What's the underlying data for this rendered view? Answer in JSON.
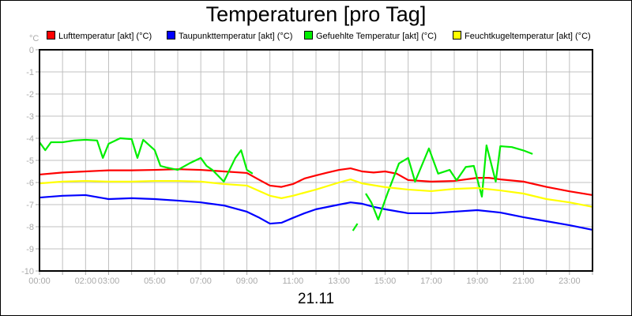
{
  "chart_data": {
    "type": "line",
    "title": "Temperaturen [pro Tag]",
    "xlabel": "21.11",
    "ylabel": "°C",
    "xlim": [
      0,
      24
    ],
    "ylim": [
      -10,
      0
    ],
    "grid": true,
    "legend_position": "top",
    "x_tick_labels": [
      {
        "h": 0,
        "label": "00:00"
      },
      {
        "h": 2,
        "label": "02:00"
      },
      {
        "h": 3,
        "label": "03:00"
      },
      {
        "h": 5,
        "label": "05:00"
      },
      {
        "h": 7,
        "label": "07:00"
      },
      {
        "h": 9,
        "label": "09:00"
      },
      {
        "h": 11,
        "label": "11:00"
      },
      {
        "h": 13,
        "label": "13:00"
      },
      {
        "h": 15,
        "label": "15:00"
      },
      {
        "h": 17,
        "label": "17:00"
      },
      {
        "h": 19,
        "label": "19:00"
      },
      {
        "h": 21,
        "label": "21:00"
      },
      {
        "h": 23,
        "label": "23:00"
      }
    ],
    "y_ticks": [
      0,
      -1,
      -2,
      -3,
      -4,
      -5,
      -6,
      -7,
      -8,
      -9,
      -10
    ],
    "series": [
      {
        "name": "Lufttemperatur [akt] (°C)",
        "color": "#ff0000",
        "segments": [
          [
            [
              0,
              -5.64
            ],
            [
              1,
              -5.55
            ],
            [
              2,
              -5.5
            ],
            [
              3,
              -5.45
            ],
            [
              4,
              -5.45
            ],
            [
              5,
              -5.43
            ],
            [
              6,
              -5.4
            ],
            [
              7,
              -5.43
            ],
            [
              8,
              -5.5
            ],
            [
              9,
              -5.57
            ],
            [
              9.5,
              -5.86
            ],
            [
              10,
              -6.14
            ],
            [
              10.5,
              -6.2
            ],
            [
              11,
              -6.07
            ],
            [
              11.5,
              -5.82
            ],
            [
              12,
              -5.68
            ],
            [
              12.5,
              -5.55
            ],
            [
              13,
              -5.43
            ],
            [
              13.5,
              -5.36
            ],
            [
              14,
              -5.5
            ],
            [
              14.5,
              -5.55
            ],
            [
              15,
              -5.5
            ],
            [
              15.5,
              -5.6
            ],
            [
              16,
              -5.89
            ],
            [
              17,
              -5.96
            ],
            [
              18,
              -5.93
            ],
            [
              19,
              -5.79
            ],
            [
              19.5,
              -5.79
            ],
            [
              20,
              -5.86
            ],
            [
              21,
              -5.96
            ],
            [
              22,
              -6.2
            ],
            [
              23,
              -6.4
            ],
            [
              24,
              -6.57
            ]
          ]
        ]
      },
      {
        "name": "Taupunkttemperatur [akt] (°C)",
        "color": "#0000ff",
        "segments": [
          [
            [
              0,
              -6.68
            ],
            [
              1,
              -6.6
            ],
            [
              2,
              -6.57
            ],
            [
              3,
              -6.75
            ],
            [
              4,
              -6.71
            ],
            [
              5,
              -6.75
            ],
            [
              6,
              -6.82
            ],
            [
              7,
              -6.9
            ],
            [
              8,
              -7.04
            ],
            [
              9,
              -7.32
            ],
            [
              9.5,
              -7.57
            ],
            [
              10,
              -7.86
            ],
            [
              10.5,
              -7.82
            ],
            [
              11,
              -7.6
            ],
            [
              11.5,
              -7.39
            ],
            [
              12,
              -7.21
            ],
            [
              13,
              -7.0
            ],
            [
              13.5,
              -6.9
            ],
            [
              14,
              -6.96
            ],
            [
              14.5,
              -7.1
            ],
            [
              15,
              -7.21
            ],
            [
              16,
              -7.39
            ],
            [
              17,
              -7.39
            ],
            [
              18,
              -7.32
            ],
            [
              19,
              -7.25
            ],
            [
              20,
              -7.36
            ],
            [
              21,
              -7.57
            ],
            [
              22,
              -7.75
            ],
            [
              23,
              -7.93
            ],
            [
              24,
              -8.14
            ]
          ]
        ]
      },
      {
        "name": "Gefuehlte Temperatur [akt] (°C)",
        "color": "#00ee00",
        "segments": [
          [
            [
              0,
              -4.18
            ],
            [
              0.25,
              -4.54
            ],
            [
              0.5,
              -4.18
            ],
            [
              1,
              -4.18
            ],
            [
              1.5,
              -4.1
            ],
            [
              2,
              -4.07
            ],
            [
              2.5,
              -4.1
            ],
            [
              2.75,
              -4.89
            ],
            [
              3,
              -4.25
            ],
            [
              3.5,
              -4.0
            ],
            [
              4,
              -4.04
            ],
            [
              4.25,
              -4.89
            ],
            [
              4.5,
              -4.07
            ],
            [
              5,
              -4.54
            ],
            [
              5.25,
              -5.25
            ],
            [
              5.5,
              -5.32
            ],
            [
              6,
              -5.43
            ],
            [
              6.5,
              -5.14
            ],
            [
              7,
              -4.89
            ],
            [
              7.25,
              -5.25
            ],
            [
              7.5,
              -5.43
            ],
            [
              8,
              -5.96
            ],
            [
              8.5,
              -4.89
            ],
            [
              8.75,
              -4.54
            ],
            [
              9,
              -5.43
            ],
            [
              9.25,
              -5.6
            ]
          ],
          [
            [
              13.6,
              -8.18
            ],
            [
              13.8,
              -7.86
            ]
          ],
          [
            [
              14.16,
              -6.5
            ],
            [
              14.4,
              -6.9
            ],
            [
              14.7,
              -7.68
            ],
            [
              15.1,
              -6.5
            ],
            [
              15.6,
              -5.14
            ],
            [
              16,
              -4.89
            ],
            [
              16.3,
              -5.96
            ],
            [
              16.9,
              -4.46
            ],
            [
              17.3,
              -5.6
            ],
            [
              17.8,
              -5.43
            ],
            [
              18.1,
              -5.9
            ],
            [
              18.5,
              -5.3
            ],
            [
              18.85,
              -5.25
            ],
            [
              19.2,
              -6.64
            ],
            [
              19.4,
              -4.32
            ],
            [
              19.8,
              -5.96
            ],
            [
              20,
              -4.36
            ],
            [
              20.5,
              -4.4
            ],
            [
              21,
              -4.55
            ],
            [
              21.4,
              -4.71
            ]
          ]
        ]
      },
      {
        "name": "Feuchtkugeltemperatur [akt] (°C)",
        "color": "#ffff00",
        "segments": [
          [
            [
              0,
              -6.04
            ],
            [
              1,
              -5.96
            ],
            [
              2,
              -5.93
            ],
            [
              3,
              -5.96
            ],
            [
              4,
              -5.96
            ],
            [
              5,
              -5.93
            ],
            [
              6,
              -5.93
            ],
            [
              7,
              -5.96
            ],
            [
              8,
              -6.07
            ],
            [
              9,
              -6.14
            ],
            [
              10,
              -6.6
            ],
            [
              10.5,
              -6.71
            ],
            [
              11,
              -6.6
            ],
            [
              12,
              -6.32
            ],
            [
              13,
              -6.0
            ],
            [
              13.5,
              -5.86
            ],
            [
              14,
              -6.04
            ],
            [
              15,
              -6.21
            ],
            [
              16,
              -6.32
            ],
            [
              17,
              -6.39
            ],
            [
              18,
              -6.29
            ],
            [
              19,
              -6.25
            ],
            [
              20,
              -6.36
            ],
            [
              21,
              -6.5
            ],
            [
              22,
              -6.75
            ],
            [
              23,
              -6.9
            ],
            [
              24,
              -7.1
            ]
          ]
        ]
      }
    ]
  }
}
